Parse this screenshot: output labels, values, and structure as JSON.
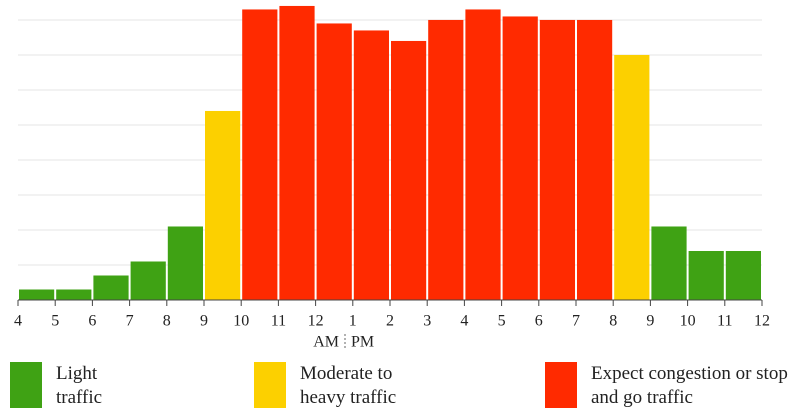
{
  "chart_data": {
    "type": "histogram",
    "bins": [
      4,
      5,
      6,
      7,
      8,
      9,
      10,
      11,
      12,
      13,
      14,
      15,
      16,
      17,
      18,
      19,
      20,
      21,
      22,
      23,
      24
    ],
    "values": [
      0.3,
      0.3,
      0.7,
      1.1,
      2.1,
      5.4,
      8.3,
      8.4,
      7.9,
      7.7,
      7.4,
      8.0,
      8.3,
      8.1,
      8.0,
      8.0,
      7.0,
      2.1,
      1.4,
      1.4
    ],
    "colors": [
      "#3fa214",
      "#3fa214",
      "#3fa214",
      "#3fa214",
      "#3fa214",
      "#fcd000",
      "#ff2a00",
      "#ff2a00",
      "#ff2a00",
      "#ff2a00",
      "#ff2a00",
      "#ff2a00",
      "#ff2a00",
      "#ff2a00",
      "#ff2a00",
      "#ff2a00",
      "#fcd000",
      "#3fa214",
      "#3fa214",
      "#3fa214"
    ],
    "xlim": [
      4,
      24
    ],
    "xticks": [
      4,
      5,
      6,
      7,
      8,
      9,
      10,
      11,
      12,
      {
        "value": 13,
        "label": "1"
      },
      {
        "value": 14,
        "label": "2"
      },
      {
        "value": 15,
        "label": "3"
      },
      {
        "value": 16,
        "label": "4"
      },
      {
        "value": 17,
        "label": "5"
      },
      {
        "value": 18,
        "label": "6"
      },
      {
        "value": 19,
        "label": "7"
      },
      {
        "value": 20,
        "label": "8"
      },
      {
        "value": 21,
        "label": "9"
      },
      {
        "value": 22,
        "label": "10"
      },
      {
        "value": 23,
        "label": "11"
      },
      {
        "value": 24,
        "label": "12"
      }
    ],
    "ylim": [
      0,
      8.57
    ],
    "yticks": [
      0,
      1,
      2,
      3,
      4,
      5,
      6,
      7,
      8
    ],
    "grid": true,
    "annotations": [
      "AM",
      "PM"
    ],
    "legend": [
      {
        "name": "Light traffic",
        "color": "#3fa214"
      },
      {
        "name": "Moderate to heavy traffic",
        "color": "#fcd000"
      },
      {
        "name": "Expect congestion or stop and go traffic",
        "color": "#ff2a00"
      }
    ]
  }
}
